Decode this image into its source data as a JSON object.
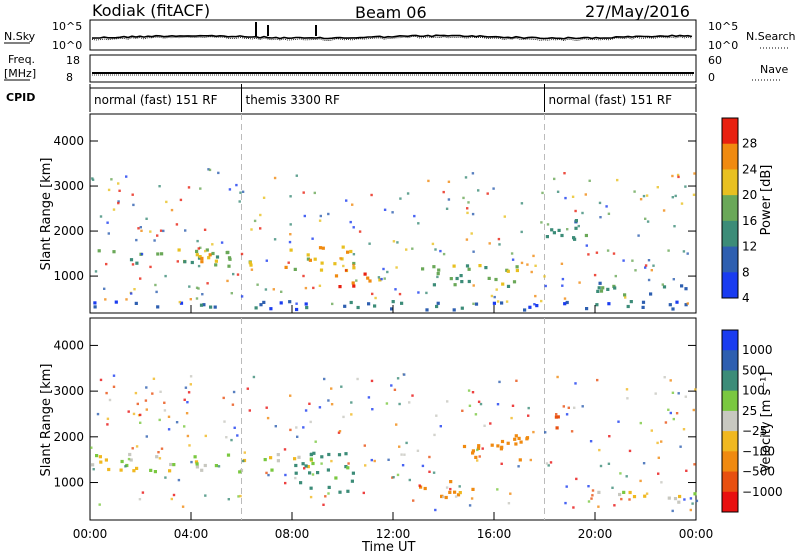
{
  "header": {
    "radar": "Kodiak (fitACF)",
    "beam": "Beam 06",
    "date": "27/May/2016"
  },
  "status_panel": {
    "nsky_label": "N.Sky",
    "nsky_ticks": [
      "10^5",
      "10^0"
    ],
    "nsearch_label": "N.Search",
    "nsearch_ticks": [
      "10^5",
      "10^0"
    ],
    "freq_label": "Freq.",
    "freq_unit": "[MHz]",
    "freq_ticks": [
      "18",
      "8"
    ],
    "nave_label": "Nave",
    "nave_ticks": [
      "60",
      "0"
    ],
    "cpid_label": "CPID"
  },
  "cpid_segments": [
    {
      "label": "normal (fast) 151 RF",
      "start_hour": 0,
      "end_hour": 6
    },
    {
      "label": "themis 3300 RF",
      "start_hour": 6,
      "end_hour": 18
    },
    {
      "label": "normal (fast) 151 RF",
      "start_hour": 18,
      "end_hour": 24
    }
  ],
  "chart_data": [
    {
      "type": "heatmap",
      "panel": "power",
      "ylabel": "Slant Range [km]",
      "ylim": [
        180,
        4600
      ],
      "yticks": [
        "1000",
        "2000",
        "3000",
        "4000"
      ],
      "xlim": [
        0,
        24
      ],
      "colorbar": {
        "label": "Power [dB]",
        "ticks": [
          "4",
          "8",
          "12",
          "16",
          "20",
          "24",
          "28"
        ],
        "colors": [
          "#1a3cf0",
          "#2e5fb0",
          "#3c8c78",
          "#6aa858",
          "#e8c020",
          "#f08a10",
          "#e82010"
        ]
      },
      "regions": [
        {
          "t": [
            0.0,
            5.5
          ],
          "r": [
            1320,
            1620
          ],
          "level": 3
        },
        {
          "t": [
            4.0,
            7.5
          ],
          "r": [
            1250,
            1620
          ],
          "level": 4
        },
        {
          "t": [
            7.5,
            10.5
          ],
          "r": [
            1150,
            1700
          ],
          "level": 4
        },
        {
          "t": [
            9.5,
            11.5
          ],
          "r": [
            800,
            1200
          ],
          "level": 5
        },
        {
          "t": [
            0.0,
            24.0
          ],
          "r": [
            280,
            470
          ],
          "level": 1
        },
        {
          "t": [
            12.5,
            17.0
          ],
          "r": [
            800,
            1300
          ],
          "level": 3
        },
        {
          "t": [
            18.0,
            20.0
          ],
          "r": [
            1800,
            2300
          ],
          "level": 2
        },
        {
          "t": [
            20.0,
            24.0
          ],
          "r": [
            600,
            900
          ],
          "level": 2
        }
      ]
    },
    {
      "type": "heatmap",
      "panel": "velocity",
      "ylabel": "Slant Range [km]",
      "ylim": [
        180,
        4600
      ],
      "yticks": [
        "1000",
        "2000",
        "3000",
        "4000"
      ],
      "xlim": [
        0,
        24
      ],
      "xticks": [
        "00:00",
        "04:00",
        "08:00",
        "12:00",
        "16:00",
        "20:00",
        "00:00"
      ],
      "xlabel": "Time UT",
      "colorbar": {
        "label": "Velocity [m s⁻¹]",
        "ticks": [
          "1000",
          "500",
          "100",
          "25",
          "−25",
          "−100",
          "−500",
          "−1000"
        ],
        "colors": [
          "#1a3cf0",
          "#2e5fb0",
          "#3c8c78",
          "#7ac840",
          "#c8c8c0",
          "#f0b820",
          "#f08a10",
          "#e85010",
          "#e81010"
        ]
      },
      "regions": [
        {
          "t": [
            0.0,
            9.0
          ],
          "r": [
            1250,
            1650
          ],
          "velocity": 0
        },
        {
          "t": [
            8.0,
            10.5
          ],
          "r": [
            800,
            1700
          ],
          "velocity": 150
        },
        {
          "t": [
            13.0,
            15.5
          ],
          "r": [
            700,
            1100
          ],
          "velocity": -120
        },
        {
          "t": [
            14.5,
            17.5
          ],
          "r": [
            1500,
            2100
          ],
          "velocity": -400
        },
        {
          "t": [
            18.0,
            19.0
          ],
          "r": [
            2200,
            2500
          ],
          "velocity": -800
        },
        {
          "t": [
            20.0,
            24.0
          ],
          "r": [
            600,
            850
          ],
          "velocity": 0
        }
      ]
    }
  ],
  "colors": {
    "guide_dashed": "#bbbbbb",
    "axis": "#000000"
  }
}
